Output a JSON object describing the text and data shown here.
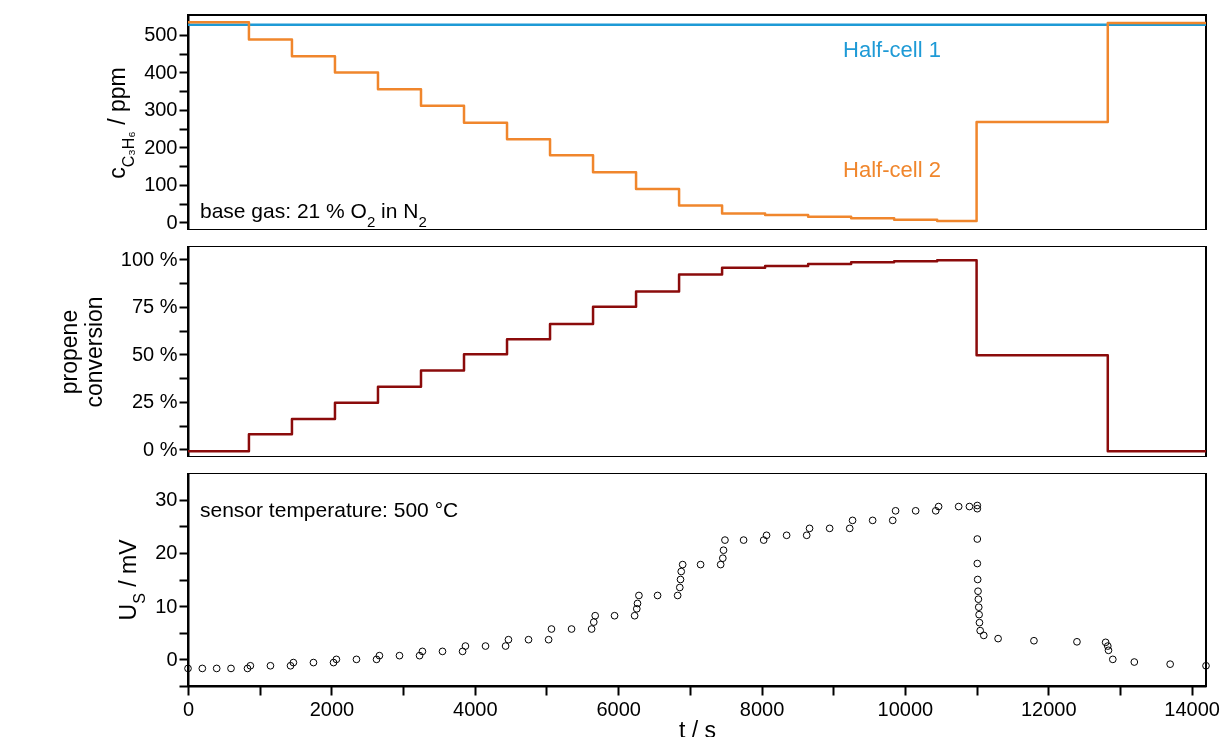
{
  "chart_data": [
    {
      "type": "step",
      "ylabel": "c$_{C₃H₆}$ / ppm",
      "xlim": [
        0,
        14200
      ],
      "ylim": [
        -20,
        553
      ],
      "xticks": [
        0,
        {
          "value": 1000,
          "label": null
        },
        2000,
        {
          "value": 3000,
          "label": null
        },
        4000,
        {
          "value": 5000,
          "label": null
        },
        6000,
        {
          "value": 7000,
          "label": null
        },
        8000,
        {
          "value": 9000,
          "label": null
        },
        10000,
        {
          "value": 11000,
          "label": null
        },
        12000,
        {
          "value": 13000,
          "label": null
        },
        14000
      ],
      "yticks": [
        0,
        {
          "value": 50,
          "label": null
        },
        100,
        {
          "value": 150,
          "label": null
        },
        200,
        {
          "value": 250,
          "label": null
        },
        300,
        {
          "value": 350,
          "label": null
        },
        400,
        {
          "value": 450,
          "label": null
        },
        500
      ],
      "tick_labels": "y",
      "grid": false,
      "legend": false,
      "annotations": [
        "base gas: 21 % O$_{2}$ in N$_{2}$"
      ],
      "series": [
        {
          "name": "Half-cell 1",
          "color": "#1e9ad6",
          "x": [
            0,
            14200
          ],
          "values": [
            527,
            527
          ]
        },
        {
          "name": "Half-cell 2",
          "color": "#f0862c",
          "x": [
            0,
            850,
            1450,
            2050,
            2650,
            3250,
            3850,
            4450,
            5050,
            5650,
            6250,
            6850,
            7450,
            8050,
            8650,
            9250,
            9850,
            10450,
            11000,
            12830,
            14200
          ],
          "values": [
            534,
            488,
            443,
            400,
            355,
            311,
            266,
            222,
            179,
            134,
            89,
            45,
            24,
            20,
            15,
            11,
            7,
            4,
            268,
            532,
            532
          ]
        }
      ]
    },
    {
      "type": "step",
      "ylabel": "propene conversion",
      "xlim": [
        0,
        14200
      ],
      "ylim": [
        -4,
        107
      ],
      "xticks": [
        0,
        {
          "value": 1000,
          "label": null
        },
        2000,
        {
          "value": 3000,
          "label": null
        },
        4000,
        {
          "value": 5000,
          "label": null
        },
        6000,
        {
          "value": 7000,
          "label": null
        },
        8000,
        {
          "value": 9000,
          "label": null
        },
        10000,
        {
          "value": 11000,
          "label": null
        },
        12000,
        {
          "value": 13000,
          "label": null
        },
        14000
      ],
      "yticks": [
        {
          "value": 0,
          "label": "0 %"
        },
        {
          "value": 12.5,
          "label": null
        },
        {
          "value": 25,
          "label": "25 %"
        },
        {
          "value": 37.5,
          "label": null
        },
        {
          "value": 50,
          "label": "50 %"
        },
        {
          "value": 62.5,
          "label": null
        },
        {
          "value": 75,
          "label": "75 %"
        },
        {
          "value": 87.5,
          "label": null
        },
        {
          "value": 100,
          "label": "100 %"
        }
      ],
      "tick_labels": "y",
      "grid": false,
      "legend": false,
      "series": [
        {
          "color": "#8b0b0b",
          "x": [
            0,
            850,
            1450,
            2050,
            2650,
            3250,
            3850,
            4450,
            5050,
            5650,
            6250,
            6850,
            7450,
            8050,
            8650,
            9250,
            9850,
            10450,
            11000,
            12830,
            14200
          ],
          "values": [
            -1,
            8,
            16,
            24.5,
            33,
            41.5,
            50,
            58,
            66,
            75,
            83,
            92,
            95.5,
            96.5,
            97.5,
            98.5,
            99,
            99.5,
            49.5,
            -1,
            -1
          ]
        }
      ]
    },
    {
      "type": "scatter",
      "xlabel": "t / s",
      "ylabel": "U$_{S}$ / mV",
      "xlim": [
        0,
        14200
      ],
      "ylim": [
        -5,
        35
      ],
      "xticks": [
        0,
        {
          "value": 1000,
          "label": null
        },
        2000,
        {
          "value": 3000,
          "label": null
        },
        4000,
        {
          "value": 5000,
          "label": null
        },
        6000,
        {
          "value": 7000,
          "label": null
        },
        8000,
        {
          "value": 9000,
          "label": null
        },
        10000,
        {
          "value": 11000,
          "label": null
        },
        12000,
        {
          "value": 13000,
          "label": null
        },
        14000
      ],
      "yticks": [
        {
          "value": -5,
          "label": null
        },
        0,
        {
          "value": 5,
          "label": null
        },
        10,
        {
          "value": 15,
          "label": null
        },
        20,
        {
          "value": 25,
          "label": null
        },
        30
      ],
      "grid": false,
      "legend": false,
      "marker": "circle",
      "annotations": [
        "sensor temperature: 500 °C"
      ],
      "series": [
        {
          "color": "#000000",
          "x": [
            0,
            200,
            400,
            600,
            830,
            870,
            1150,
            1430,
            1470,
            1750,
            2030,
            2070,
            2350,
            2630,
            2670,
            2950,
            3230,
            3270,
            3550,
            3830,
            3870,
            4150,
            4430,
            4470,
            4750,
            5030,
            5070,
            5350,
            5630,
            5660,
            5680,
            5950,
            6230,
            6260,
            6270,
            6290,
            6550,
            6830,
            6860,
            6870,
            6880,
            6900,
            7150,
            7430,
            7460,
            7470,
            7490,
            7750,
            8030,
            8070,
            8350,
            8630,
            8670,
            8950,
            9230,
            9270,
            9550,
            9830,
            9870,
            10150,
            10430,
            10470,
            10750,
            10900,
            11010,
            11010,
            11010,
            11010,
            11015,
            11020,
            11025,
            11030,
            11035,
            11040,
            11050,
            11100,
            11300,
            11800,
            12400,
            12800,
            12830,
            12840,
            12900,
            13200,
            13700,
            14200
          ],
          "values": [
            -1.7,
            -1.7,
            -1.7,
            -1.7,
            -1.7,
            -1.2,
            -1.2,
            -1.2,
            -0.6,
            -0.6,
            -0.6,
            0,
            0,
            0,
            0.7,
            0.7,
            0.7,
            1.5,
            1.5,
            1.5,
            2.5,
            2.5,
            2.5,
            3.7,
            3.7,
            3.7,
            5.7,
            5.7,
            5.7,
            7,
            8.2,
            8.2,
            8.2,
            9.5,
            10.5,
            12,
            12,
            12,
            13.5,
            15,
            16.5,
            17.8,
            17.8,
            17.8,
            19,
            20.5,
            22.4,
            22.4,
            22.4,
            23.3,
            23.3,
            23.3,
            24.6,
            24.6,
            24.6,
            26.1,
            26.1,
            26.1,
            27.9,
            27.9,
            27.9,
            28.7,
            28.7,
            28.7,
            28.9,
            28.3,
            22.6,
            18,
            15,
            12.8,
            11.3,
            9.8,
            8.4,
            6.9,
            5.4,
            4.5,
            3.9,
            3.5,
            3.3,
            3.2,
            2.5,
            1.7,
            0,
            -0.5,
            -0.9,
            -1.2
          ]
        }
      ]
    }
  ]
}
